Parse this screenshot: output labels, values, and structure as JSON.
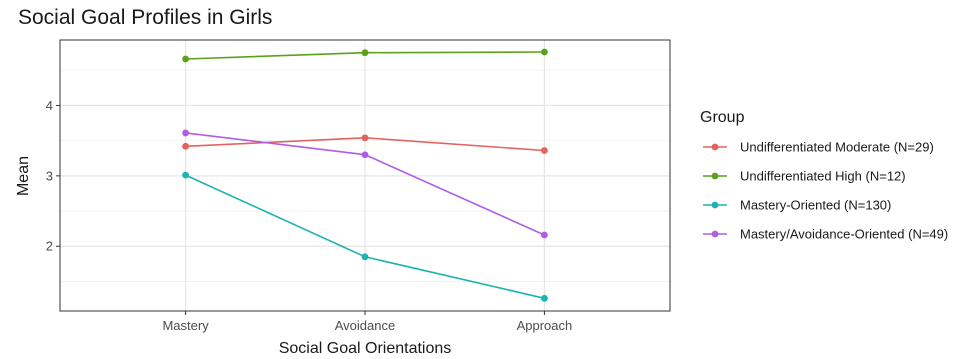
{
  "chart_data": {
    "type": "line",
    "title": "Social Goal Profiles in Girls",
    "xlabel": "Social Goal Orientations",
    "ylabel": "Mean",
    "categories": [
      "Mastery",
      "Avoidance",
      "Approach"
    ],
    "y_ticks": [
      2,
      3,
      4
    ],
    "ylim": [
      1.08,
      4.93
    ],
    "grid": true,
    "legend_title": "Group",
    "legend_position": "right",
    "series": [
      {
        "name": "Undifferentiated Moderate (N=29)",
        "color": "#e2635d",
        "values": [
          3.42,
          3.54,
          3.36
        ]
      },
      {
        "name": "Undifferentiated High (N=12)",
        "color": "#5ca11a",
        "values": [
          4.66,
          4.75,
          4.76
        ]
      },
      {
        "name": "Mastery-Oriented (N=130)",
        "color": "#1fb2b3",
        "values": [
          3.01,
          1.85,
          1.26
        ]
      },
      {
        "name": "Mastery/Avoidance-Oriented (N=49)",
        "color": "#b05ce6",
        "values": [
          3.61,
          3.3,
          2.16
        ]
      }
    ]
  }
}
